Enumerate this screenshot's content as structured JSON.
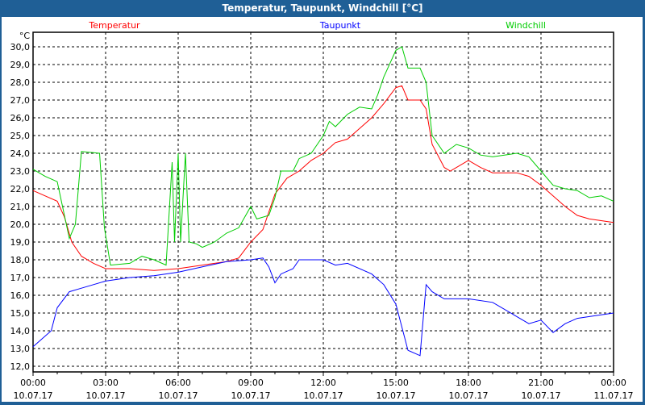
{
  "window_title": "Temperatur, Taupunkt, Windchill [°C]",
  "chart_data": {
    "type": "line",
    "title": "Temperatur, Taupunkt, Windchill [°C]",
    "ylabel": "°C",
    "ylim": [
      12,
      30.8
    ],
    "yticks": [
      "12,0",
      "13,0",
      "14,0",
      "15,0",
      "16,0",
      "17,0",
      "18,0",
      "19,0",
      "20,0",
      "21,0",
      "22,0",
      "23,0",
      "24,0",
      "25,0",
      "26,0",
      "27,0",
      "28,0",
      "29,0",
      "30,0"
    ],
    "xlim": [
      0,
      24
    ],
    "xticks": [
      {
        "time": "00:00",
        "date": "10.07.17"
      },
      {
        "time": "03:00",
        "date": "10.07.17"
      },
      {
        "time": "06:00",
        "date": "10.07.17"
      },
      {
        "time": "09:00",
        "date": "10.07.17"
      },
      {
        "time": "12:00",
        "date": "10.07.17"
      },
      {
        "time": "15:00",
        "date": "10.07.17"
      },
      {
        "time": "18:00",
        "date": "10.07.17"
      },
      {
        "time": "21:00",
        "date": "10.07.17"
      },
      {
        "time": "00:00",
        "date": "11.07.17"
      }
    ],
    "grid": true,
    "series": [
      {
        "name": "Temperatur",
        "color": "#ff0000",
        "legend": "top-left",
        "points": [
          [
            0,
            21.9
          ],
          [
            0.5,
            21.6
          ],
          [
            1,
            21.3
          ],
          [
            1.3,
            20.4
          ],
          [
            1.6,
            19.0
          ],
          [
            2,
            18.2
          ],
          [
            2.5,
            17.8
          ],
          [
            3,
            17.5
          ],
          [
            4,
            17.5
          ],
          [
            5,
            17.4
          ],
          [
            6,
            17.5
          ],
          [
            7,
            17.7
          ],
          [
            8,
            17.9
          ],
          [
            8.5,
            18.1
          ],
          [
            9,
            19.0
          ],
          [
            9.5,
            19.7
          ],
          [
            10,
            21.7
          ],
          [
            10.5,
            22.6
          ],
          [
            11,
            23.0
          ],
          [
            11.5,
            23.6
          ],
          [
            12,
            24.0
          ],
          [
            12.5,
            24.6
          ],
          [
            13,
            24.8
          ],
          [
            13.5,
            25.4
          ],
          [
            14,
            26.0
          ],
          [
            14.5,
            26.8
          ],
          [
            15,
            27.7
          ],
          [
            15.25,
            27.8
          ],
          [
            15.5,
            27.0
          ],
          [
            16,
            27.0
          ],
          [
            16.25,
            26.5
          ],
          [
            16.5,
            24.5
          ],
          [
            17,
            23.2
          ],
          [
            17.25,
            23.0
          ],
          [
            18,
            23.6
          ],
          [
            18.5,
            23.2
          ],
          [
            19,
            22.9
          ],
          [
            20,
            22.9
          ],
          [
            20.5,
            22.7
          ],
          [
            21,
            22.2
          ],
          [
            22,
            21.0
          ],
          [
            22.5,
            20.5
          ],
          [
            23,
            20.3
          ],
          [
            24,
            20.1
          ]
        ]
      },
      {
        "name": "Taupunkt",
        "color": "#0000ff",
        "legend": "top-center",
        "points": [
          [
            0,
            13.1
          ],
          [
            0.75,
            14.0
          ],
          [
            1,
            15.3
          ],
          [
            1.5,
            16.2
          ],
          [
            2,
            16.4
          ],
          [
            3,
            16.8
          ],
          [
            4,
            17.0
          ],
          [
            5,
            17.1
          ],
          [
            6,
            17.3
          ],
          [
            7,
            17.6
          ],
          [
            8,
            17.9
          ],
          [
            9,
            18.0
          ],
          [
            9.5,
            18.1
          ],
          [
            9.75,
            17.6
          ],
          [
            10,
            16.7
          ],
          [
            10.25,
            17.2
          ],
          [
            10.75,
            17.5
          ],
          [
            11,
            18.0
          ],
          [
            12,
            18.0
          ],
          [
            12.5,
            17.7
          ],
          [
            13,
            17.8
          ],
          [
            14,
            17.2
          ],
          [
            14.5,
            16.6
          ],
          [
            15,
            15.5
          ],
          [
            15.5,
            12.9
          ],
          [
            16,
            12.6
          ],
          [
            16.25,
            16.6
          ],
          [
            16.5,
            16.2
          ],
          [
            17,
            15.8
          ],
          [
            18,
            15.8
          ],
          [
            19,
            15.6
          ],
          [
            20,
            14.8
          ],
          [
            20.5,
            14.4
          ],
          [
            21,
            14.6
          ],
          [
            21.5,
            13.9
          ],
          [
            22,
            14.4
          ],
          [
            22.5,
            14.7
          ],
          [
            23,
            14.8
          ],
          [
            24,
            15.0
          ]
        ]
      },
      {
        "name": "Windchill",
        "color": "#00cc00",
        "legend": "top-right",
        "points": [
          [
            0,
            23.1
          ],
          [
            0.5,
            22.7
          ],
          [
            1,
            22.4
          ],
          [
            1.5,
            19.2
          ],
          [
            1.75,
            20.0
          ],
          [
            2,
            24.1
          ],
          [
            2.75,
            24.0
          ],
          [
            2.95,
            19.8
          ],
          [
            3.2,
            17.7
          ],
          [
            4,
            17.8
          ],
          [
            4.5,
            18.2
          ],
          [
            5,
            18.0
          ],
          [
            5.5,
            17.7
          ],
          [
            5.75,
            23.5
          ],
          [
            5.85,
            19.0
          ],
          [
            6,
            24.0
          ],
          [
            6.1,
            19.0
          ],
          [
            6.3,
            24.0
          ],
          [
            6.45,
            19.0
          ],
          [
            6.75,
            18.9
          ],
          [
            7,
            18.7
          ],
          [
            7.5,
            19.0
          ],
          [
            8,
            19.5
          ],
          [
            8.5,
            19.8
          ],
          [
            9,
            21.0
          ],
          [
            9.25,
            20.3
          ],
          [
            9.75,
            20.5
          ],
          [
            10,
            21.5
          ],
          [
            10.25,
            23.0
          ],
          [
            10.75,
            23.0
          ],
          [
            11,
            23.7
          ],
          [
            11.5,
            24.0
          ],
          [
            12,
            25.0
          ],
          [
            12.25,
            25.8
          ],
          [
            12.5,
            25.5
          ],
          [
            13,
            26.2
          ],
          [
            13.5,
            26.6
          ],
          [
            14,
            26.5
          ],
          [
            14.25,
            27.3
          ],
          [
            14.5,
            28.3
          ],
          [
            15,
            29.8
          ],
          [
            15.25,
            30.0
          ],
          [
            15.5,
            28.8
          ],
          [
            16,
            28.8
          ],
          [
            16.25,
            28.0
          ],
          [
            16.5,
            25.0
          ],
          [
            17,
            24.0
          ],
          [
            17.5,
            24.5
          ],
          [
            18,
            24.3
          ],
          [
            18.5,
            23.9
          ],
          [
            19,
            23.8
          ],
          [
            20,
            24.0
          ],
          [
            20.5,
            23.8
          ],
          [
            21,
            23.0
          ],
          [
            21.5,
            22.2
          ],
          [
            22,
            22.0
          ],
          [
            22.5,
            21.9
          ],
          [
            23,
            21.5
          ],
          [
            23.5,
            21.6
          ],
          [
            24,
            21.3
          ]
        ]
      }
    ]
  }
}
